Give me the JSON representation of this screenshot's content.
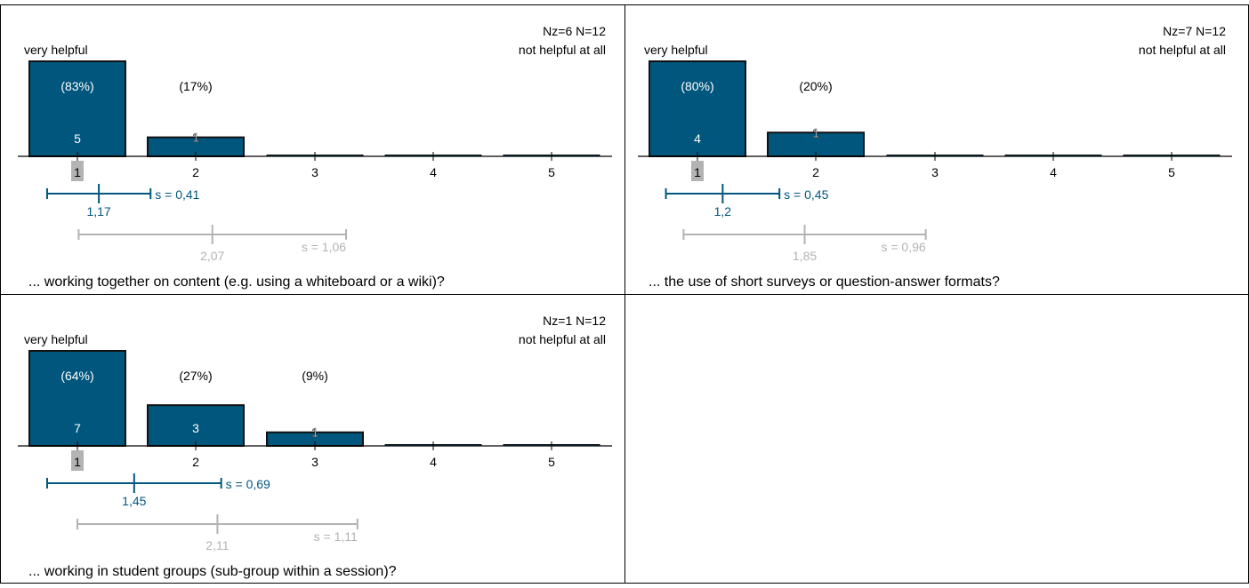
{
  "chart_data": [
    {
      "type": "bar",
      "question": "... working together on content (e.g. using a whiteboard or a wiki)?",
      "counts_label": "Nz=6  N=12",
      "left_pole": "very helpful",
      "right_pole": "not helpful at all",
      "categories": [
        "1",
        "2",
        "3",
        "4",
        "5"
      ],
      "values": [
        5,
        1,
        0,
        0,
        0
      ],
      "percent_labels": [
        "(83%)",
        "(17%)",
        "",
        "",
        ""
      ],
      "count_labels": [
        "5",
        "1",
        "",
        "",
        ""
      ],
      "median_category": "1",
      "mean": 1.17,
      "mean_label": "1,17",
      "sd": 0.41,
      "sd_label": "s = 0,41",
      "comparison_mean": 2.07,
      "comparison_mean_label": "2,07",
      "comparison_sd": 1.06,
      "comparison_sd_label": "s = 1,06",
      "ylim": [
        0,
        5
      ]
    },
    {
      "type": "bar",
      "question": "... the use of short surveys or question-answer formats?",
      "counts_label": "Nz=7  N=12",
      "left_pole": "very helpful",
      "right_pole": "not helpful at all",
      "categories": [
        "1",
        "2",
        "3",
        "4",
        "5"
      ],
      "values": [
        4,
        1,
        0,
        0,
        0
      ],
      "percent_labels": [
        "(80%)",
        "(20%)",
        "",
        "",
        ""
      ],
      "count_labels": [
        "4",
        "1",
        "",
        "",
        ""
      ],
      "median_category": "1",
      "mean": 1.2,
      "mean_label": "1,2",
      "sd": 0.45,
      "sd_label": "s = 0,45",
      "comparison_mean": 1.85,
      "comparison_mean_label": "1,85",
      "comparison_sd": 0.96,
      "comparison_sd_label": "s = 0,96",
      "ylim": [
        0,
        4
      ]
    },
    {
      "type": "bar",
      "question": "... working in student groups (sub-group within a session)?",
      "counts_label": "Nz=1  N=12",
      "left_pole": "very helpful",
      "right_pole": "not helpful at all",
      "categories": [
        "1",
        "2",
        "3",
        "4",
        "5"
      ],
      "values": [
        7,
        3,
        1,
        0,
        0
      ],
      "percent_labels": [
        "(64%)",
        "(27%)",
        "(9%)",
        "",
        ""
      ],
      "count_labels": [
        "7",
        "3",
        "1",
        "",
        ""
      ],
      "median_category": "1",
      "mean": 1.45,
      "mean_label": "1,45",
      "sd": 0.69,
      "sd_label": "s = 0,69",
      "comparison_mean": 2.11,
      "comparison_mean_label": "2,11",
      "comparison_sd": 1.11,
      "comparison_sd_label": "s = 1,11",
      "ylim": [
        0,
        7
      ]
    }
  ],
  "colors": {
    "bar_fill": "#00567d",
    "bar_stroke": "#111111",
    "mean_line": "#00567d",
    "comparison_line": "#b3b3b3",
    "median_highlight": "#b3b3b3",
    "grid_line": "#000000"
  }
}
